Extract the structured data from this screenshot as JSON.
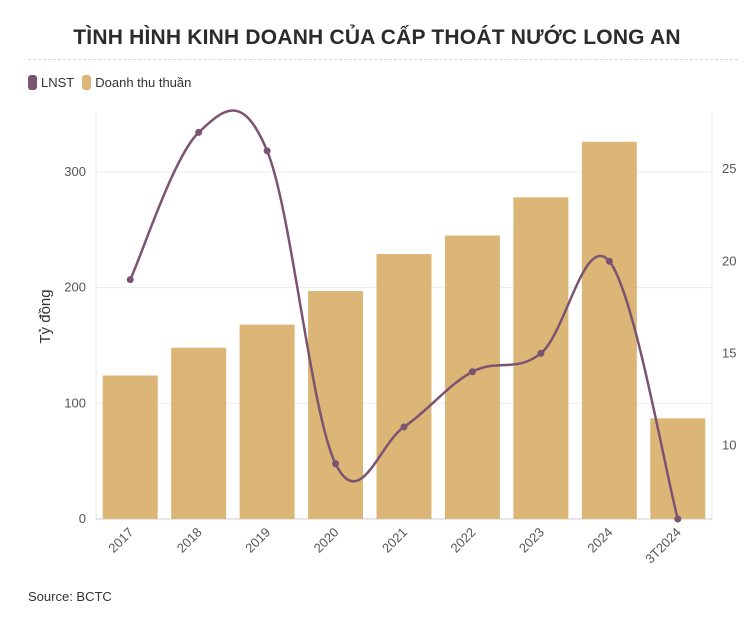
{
  "title": "TÌNH HÌNH KINH DOANH CỦA CẤP THOÁT NƯỚC LONG AN",
  "legend": {
    "items": [
      {
        "label": "LNST",
        "color": "#7a5470"
      },
      {
        "label": "Doanh thu thuần",
        "color": "#dbb676"
      }
    ]
  },
  "source": "Source: BCTC",
  "chart_data": {
    "type": "bar",
    "categories": [
      "2017",
      "2018",
      "2019",
      "2020",
      "2021",
      "2022",
      "2023",
      "2024",
      "3T2024"
    ],
    "series": [
      {
        "name": "Doanh thu thuần",
        "type": "bar",
        "axis": "left",
        "color": "#dbb676",
        "values": [
          124,
          148,
          168,
          197,
          229,
          245,
          278,
          326,
          87
        ]
      },
      {
        "name": "LNST",
        "type": "line",
        "axis": "right",
        "color": "#7a5470",
        "values": [
          19,
          27,
          26,
          9,
          11,
          14,
          15,
          20,
          6
        ]
      }
    ],
    "ylabel": "Tỷ đồng",
    "ylim": [
      0,
      350
    ],
    "yticks": [
      0,
      100,
      200,
      300
    ],
    "y2lim": [
      6,
      28
    ],
    "y2ticks": [
      10,
      15,
      20,
      25
    ],
    "grid": true,
    "legend_position": "top-left"
  }
}
